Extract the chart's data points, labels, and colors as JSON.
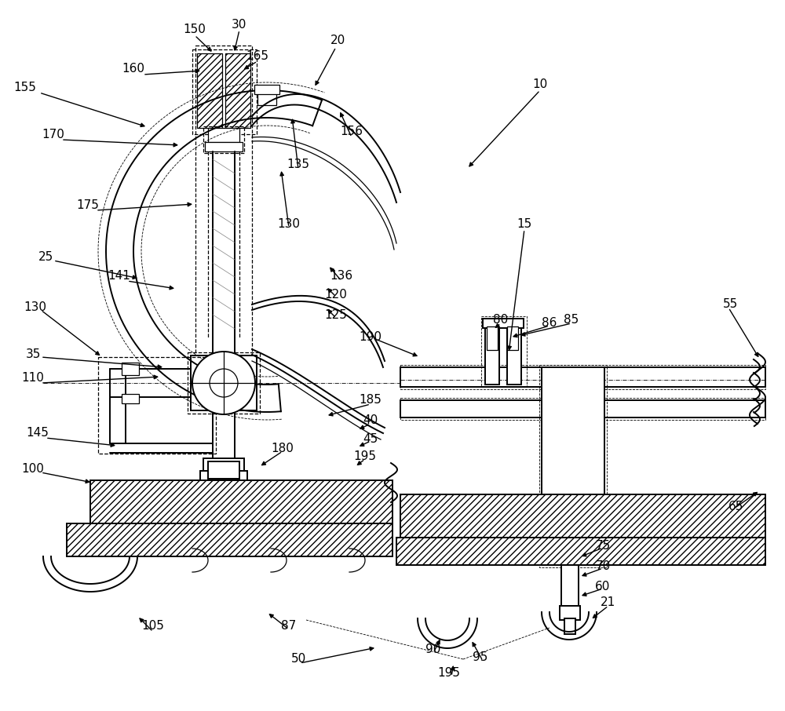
{
  "bg_color": "#ffffff",
  "figsize": [
    10.0,
    9.06
  ],
  "dpi": 100,
  "labels": [
    [
      248,
      38,
      "150"
    ],
    [
      305,
      32,
      "30"
    ],
    [
      170,
      88,
      "160"
    ],
    [
      328,
      72,
      "165"
    ],
    [
      430,
      52,
      "20"
    ],
    [
      32,
      112,
      "155"
    ],
    [
      68,
      172,
      "170"
    ],
    [
      112,
      262,
      "175"
    ],
    [
      58,
      328,
      "25"
    ],
    [
      152,
      352,
      "141"
    ],
    [
      42,
      452,
      "35"
    ],
    [
      42,
      482,
      "110"
    ],
    [
      48,
      552,
      "145"
    ],
    [
      42,
      598,
      "100"
    ],
    [
      195,
      798,
      "105"
    ],
    [
      368,
      798,
      "87"
    ],
    [
      45,
      392,
      "130"
    ],
    [
      368,
      285,
      "130"
    ],
    [
      380,
      210,
      "135"
    ],
    [
      448,
      168,
      "156"
    ],
    [
      435,
      352,
      "136"
    ],
    [
      428,
      375,
      "120"
    ],
    [
      428,
      402,
      "125"
    ],
    [
      472,
      430,
      "190"
    ],
    [
      472,
      510,
      "185"
    ],
    [
      472,
      535,
      "40"
    ],
    [
      472,
      560,
      "45"
    ],
    [
      465,
      582,
      "195"
    ],
    [
      380,
      840,
      "50"
    ],
    [
      552,
      828,
      "90"
    ],
    [
      612,
      838,
      "95"
    ],
    [
      572,
      858,
      "195"
    ],
    [
      688,
      108,
      "10"
    ],
    [
      668,
      285,
      "15"
    ],
    [
      638,
      408,
      "80"
    ],
    [
      700,
      412,
      "86"
    ],
    [
      728,
      408,
      "85"
    ],
    [
      930,
      388,
      "55"
    ],
    [
      775,
      768,
      "21"
    ],
    [
      768,
      748,
      "60"
    ],
    [
      768,
      722,
      "70"
    ],
    [
      768,
      695,
      "75"
    ],
    [
      938,
      645,
      "65"
    ],
    [
      360,
      572,
      "180"
    ]
  ]
}
